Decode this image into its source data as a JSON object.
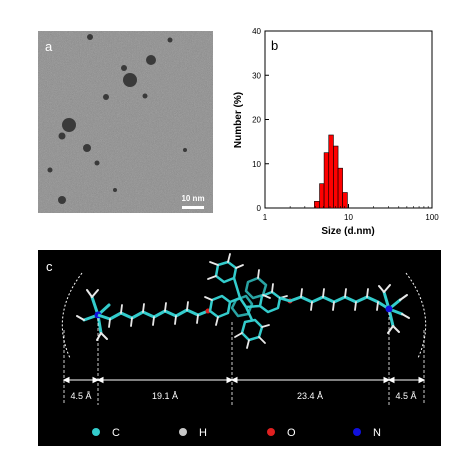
{
  "panel_a": {
    "label": "a",
    "scale_bar_label": "10 nm"
  },
  "panel_b": {
    "label": "b"
  },
  "chart_data": {
    "type": "bar",
    "title": "",
    "xlabel": "Size (d.nm)",
    "ylabel": "Number (%)",
    "x_scale": "log",
    "xlim": [
      1,
      100
    ],
    "ylim": [
      0,
      40
    ],
    "x_ticks": [
      1,
      10,
      100
    ],
    "y_ticks": [
      0,
      10,
      20,
      30,
      40
    ],
    "bars": [
      {
        "x0": 3.9,
        "x1": 4.5,
        "value": 1.5
      },
      {
        "x0": 4.5,
        "x1": 5.1,
        "value": 5.5
      },
      {
        "x0": 5.1,
        "x1": 5.8,
        "value": 12.5
      },
      {
        "x0": 5.8,
        "x1": 6.6,
        "value": 16.5
      },
      {
        "x0": 6.6,
        "x1": 7.5,
        "value": 14.0
      },
      {
        "x0": 7.5,
        "x1": 8.5,
        "value": 9.0
      },
      {
        "x0": 8.5,
        "x1": 9.7,
        "value": 3.5
      }
    ],
    "bar_color": "#ff0000",
    "grid": false
  },
  "panel_c": {
    "label": "c",
    "dimensions": [
      "4.5 Å",
      "19.1 Å",
      "23.4 Å",
      "4.5 Å"
    ],
    "legend": [
      {
        "symbol": "C",
        "color": "#33cccc"
      },
      {
        "symbol": "H",
        "color": "#c8c8c8"
      },
      {
        "symbol": "O",
        "color": "#e02020"
      },
      {
        "symbol": "N",
        "color": "#1010dd"
      }
    ]
  }
}
